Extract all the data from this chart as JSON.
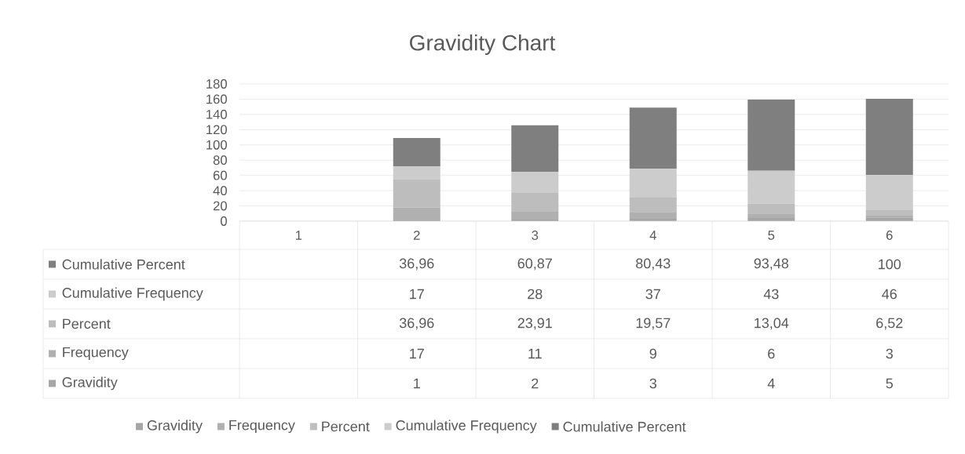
{
  "chart_data": {
    "type": "bar",
    "stacked": true,
    "title": "Gravidity Chart",
    "categories": [
      "1",
      "2",
      "3",
      "4",
      "5",
      "6"
    ],
    "series": [
      {
        "name": "Gravidity",
        "color": "#a6a6a6",
        "values": [
          null,
          1,
          2,
          3,
          4,
          5
        ],
        "value_labels": [
          null,
          "1",
          "2",
          "3",
          "4",
          "5"
        ]
      },
      {
        "name": "Frequency",
        "color": "#b0b0b0",
        "values": [
          null,
          17,
          11,
          9,
          6,
          3
        ],
        "value_labels": [
          null,
          "17",
          "11",
          "9",
          "6",
          "3"
        ]
      },
      {
        "name": "Percent",
        "color": "#bdbdbd",
        "values": [
          null,
          36.96,
          23.91,
          19.57,
          13.04,
          6.52
        ],
        "value_labels": [
          null,
          "36,96",
          "23,91",
          "19,57",
          "13,04",
          "6,52"
        ]
      },
      {
        "name": "Cumulative Frequency",
        "color": "#cccccc",
        "values": [
          null,
          17,
          28,
          37,
          43,
          46
        ],
        "value_labels": [
          null,
          "17",
          "28",
          "37",
          "43",
          "46"
        ]
      },
      {
        "name": "Cumulative Percent",
        "color": "#7f7f7f",
        "values": [
          null,
          36.96,
          60.87,
          80.43,
          93.48,
          100
        ],
        "value_labels": [
          null,
          "36,96",
          "60,87",
          "80,43",
          "93,48",
          "100"
        ]
      }
    ],
    "ylim": [
      0,
      180
    ],
    "yticks": [
      0,
      20,
      40,
      60,
      80,
      100,
      120,
      140,
      160,
      180
    ],
    "grid": "y",
    "legend": "bottom"
  }
}
